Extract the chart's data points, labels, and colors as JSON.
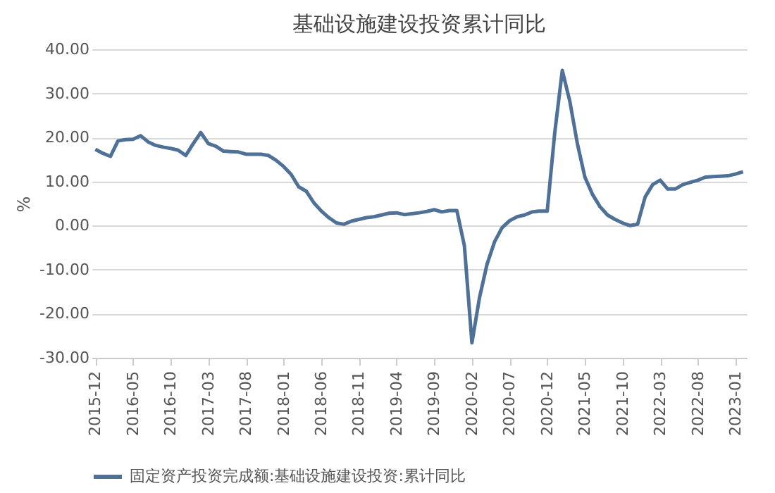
{
  "chart_data": {
    "type": "line",
    "title": "基础设施建设投资累计同比",
    "ylabel": "%",
    "categories": [
      "2015-12",
      null,
      null,
      null,
      null,
      "2016-05",
      null,
      null,
      null,
      null,
      "2016-10",
      null,
      null,
      null,
      null,
      "2017-03",
      null,
      null,
      null,
      null,
      "2017-08",
      null,
      null,
      null,
      null,
      "2018-01",
      null,
      null,
      null,
      null,
      "2018-06",
      null,
      null,
      null,
      null,
      "2018-11",
      null,
      null,
      null,
      null,
      "2019-04",
      null,
      null,
      null,
      null,
      "2019-09",
      null,
      null,
      null,
      null,
      "2020-02",
      null,
      null,
      null,
      null,
      "2020-07",
      null,
      null,
      null,
      null,
      "2020-12",
      null,
      null,
      null,
      null,
      "2021-05",
      null,
      null,
      null,
      null,
      "2021-10",
      null,
      null,
      null,
      null,
      "2022-03",
      null,
      null,
      null,
      null,
      "2022-08",
      null,
      null,
      null,
      null,
      "2023-01",
      null
    ],
    "series": [
      {
        "name": "固定资产投资完成额:基础设施建设投资:累计同比",
        "color": "#4f7198",
        "values": [
          17.3,
          16.4,
          15.7,
          19.2,
          19.5,
          19.6,
          20.4,
          19.0,
          18.2,
          17.8,
          17.5,
          17.1,
          15.9,
          18.6,
          21.1,
          18.6,
          18.0,
          16.9,
          16.8,
          16.7,
          16.2,
          16.2,
          16.2,
          15.9,
          14.8,
          13.4,
          11.6,
          8.8,
          7.8,
          5.2,
          3.3,
          1.8,
          0.6,
          0.3,
          1.0,
          1.4,
          1.8,
          2.0,
          2.4,
          2.8,
          2.9,
          2.5,
          2.7,
          2.9,
          3.2,
          3.6,
          3.1,
          3.4,
          3.4,
          -4.6,
          -26.6,
          -16.4,
          -8.8,
          -3.7,
          -0.5,
          1.1,
          2.0,
          2.4,
          3.1,
          3.3,
          3.3,
          21.1,
          35.2,
          28.2,
          18.6,
          11.0,
          7.1,
          4.3,
          2.4,
          1.4,
          0.6,
          0.0,
          0.3,
          6.5,
          9.3,
          10.3,
          8.3,
          8.3,
          9.3,
          9.8,
          10.3,
          11.0,
          11.1,
          11.2,
          11.3,
          11.7,
          12.2
        ]
      }
    ],
    "ylim": [
      -30,
      40
    ],
    "yticks": [
      {
        "value": -30,
        "label": "-30.00"
      },
      {
        "value": -20,
        "label": "-20.00"
      },
      {
        "value": -10,
        "label": "-10.00"
      },
      {
        "value": 0,
        "label": "0.00"
      },
      {
        "value": 10,
        "label": "10.00"
      },
      {
        "value": 20,
        "label": "20.00"
      },
      {
        "value": 30,
        "label": "30.00"
      },
      {
        "value": 40,
        "label": "40.00"
      }
    ],
    "grid": "y",
    "legend": "bottom",
    "marker": "none",
    "line_style": "solid"
  }
}
